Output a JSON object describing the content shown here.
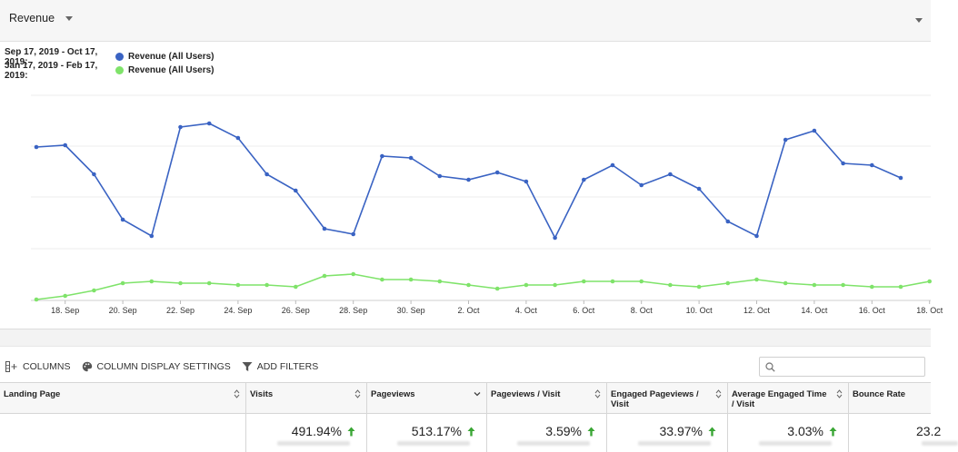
{
  "header": {
    "metric_label": "Revenue"
  },
  "legend": [
    {
      "range": "Sep 17, 2019 - Oct 17, 2019:",
      "series": "Revenue (All Users)",
      "color": "#3a63c3"
    },
    {
      "range": "Jan 17, 2019 - Feb 17, 2019:",
      "series": "Revenue (All Users)",
      "color": "#7fe36a"
    }
  ],
  "chart_data": {
    "type": "line",
    "x_ticks": [
      "18. Sep",
      "20. Sep",
      "22. Sep",
      "24. Sep",
      "26. Sep",
      "28. Sep",
      "30. Sep",
      "2. Oct",
      "4. Oct",
      "6. Oct",
      "8. Oct",
      "10. Oct",
      "12. Oct",
      "14. Oct",
      "16. Oct",
      "18. Oct"
    ],
    "x_start": "Sep 17",
    "grid": true,
    "y_axis_labels_shown": false,
    "series": [
      {
        "name": "Revenue (All Users)",
        "color": "#3a63c3",
        "values": [
          0.84,
          0.85,
          0.69,
          0.44,
          0.35,
          0.95,
          0.97,
          0.89,
          0.69,
          0.6,
          0.39,
          0.36,
          0.79,
          0.78,
          0.68,
          0.66,
          0.7,
          0.65,
          0.34,
          0.66,
          0.74,
          0.63,
          0.69,
          0.61,
          0.43,
          0.35,
          0.88,
          0.93,
          0.75,
          0.74,
          0.67
        ]
      },
      {
        "name": "Revenue (All Users)",
        "color": "#7fe36a",
        "values": [
          0.0,
          0.02,
          0.05,
          0.09,
          0.1,
          0.09,
          0.09,
          0.08,
          0.08,
          0.07,
          0.13,
          0.14,
          0.11,
          0.11,
          0.1,
          0.08,
          0.06,
          0.08,
          0.08,
          0.1,
          0.1,
          0.1,
          0.08,
          0.07,
          0.09,
          0.11,
          0.09,
          0.08,
          0.08,
          0.07,
          0.07,
          0.1
        ]
      }
    ]
  },
  "toolbar": {
    "columns_label": "COLUMNS",
    "display_settings_label": "COLUMN DISPLAY SETTINGS",
    "filters_label": "ADD FILTERS",
    "search_placeholder": ""
  },
  "table": {
    "headers": [
      {
        "label": "Landing Page",
        "sort": "both"
      },
      {
        "label": "Visits",
        "sort": "both"
      },
      {
        "label": "Pageviews",
        "sort": "desc"
      },
      {
        "label": "Pageviews / Visit",
        "sort": "both"
      },
      {
        "label": "Engaged Pageviews / Visit",
        "sort": "both"
      },
      {
        "label": "Average Engaged Time / Visit",
        "sort": "both"
      },
      {
        "label": "Bounce Rate",
        "sort": "both"
      }
    ],
    "row": [
      "",
      "491.94%",
      "513.17%",
      "3.59%",
      "33.97%",
      "3.03%",
      "23.2"
    ],
    "up_color": "#3aa635"
  }
}
